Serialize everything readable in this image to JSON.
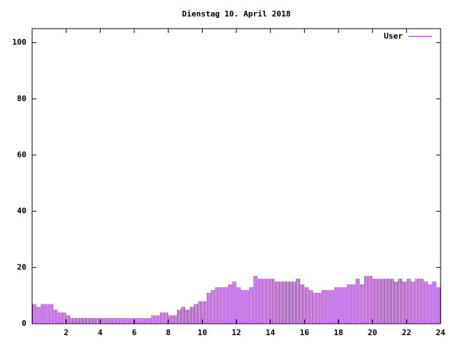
{
  "chart_data": {
    "type": "impulse",
    "title": "Dienstag 10. April 2018",
    "x": [
      0,
      0.25,
      0.5,
      0.75,
      1,
      1.25,
      1.5,
      1.75,
      2,
      2.25,
      2.5,
      2.75,
      3,
      3.25,
      3.5,
      3.75,
      4,
      4.25,
      4.5,
      4.75,
      5,
      5.25,
      5.5,
      5.75,
      6,
      6.25,
      6.5,
      6.75,
      7,
      7.25,
      7.5,
      7.75,
      8,
      8.25,
      8.5,
      8.75,
      9,
      9.25,
      9.5,
      9.75,
      10,
      10.25,
      10.5,
      10.75,
      11,
      11.25,
      11.5,
      11.75,
      12,
      12.25,
      12.5,
      12.75,
      13,
      13.25,
      13.5,
      13.75,
      14,
      14.25,
      14.5,
      14.75,
      15,
      15.25,
      15.5,
      15.75,
      16,
      16.25,
      16.5,
      16.75,
      17,
      17.25,
      17.5,
      17.75,
      18,
      18.25,
      18.5,
      18.75,
      19,
      19.25,
      19.5,
      19.75,
      20,
      20.25,
      20.5,
      20.75,
      21,
      21.25,
      21.5,
      21.75,
      22,
      22.25,
      22.5,
      22.75,
      23,
      23.25,
      23.5,
      23.75
    ],
    "series": [
      {
        "name": "User",
        "color": "#9400d3",
        "values": [
          7,
          6,
          7,
          7,
          7,
          5,
          4,
          4,
          3,
          2,
          2,
          2,
          2,
          2,
          2,
          2,
          2,
          2,
          2,
          2,
          2,
          2,
          2,
          2,
          2,
          2,
          2,
          2,
          3,
          3,
          4,
          4,
          3,
          3,
          5,
          6,
          5,
          6,
          7,
          8,
          8,
          11,
          12,
          13,
          13,
          13,
          14,
          15,
          13,
          12,
          12,
          13,
          17,
          16,
          16,
          16,
          16,
          15,
          15,
          15,
          15,
          15,
          16,
          14,
          13,
          12,
          11,
          11,
          12,
          12,
          12,
          13,
          13,
          13,
          14,
          14,
          16,
          14,
          17,
          17,
          16,
          16,
          16,
          16,
          16,
          15,
          16,
          15,
          16,
          15,
          16,
          16,
          15,
          14,
          15,
          13
        ]
      }
    ],
    "xlim": [
      0,
      24
    ],
    "xticks": [
      2,
      4,
      6,
      8,
      10,
      12,
      14,
      16,
      18,
      20,
      22,
      24
    ],
    "ylim": [
      0,
      105
    ],
    "yticks": [
      0,
      20,
      40,
      60,
      80,
      100
    ],
    "legend": "top-right"
  }
}
